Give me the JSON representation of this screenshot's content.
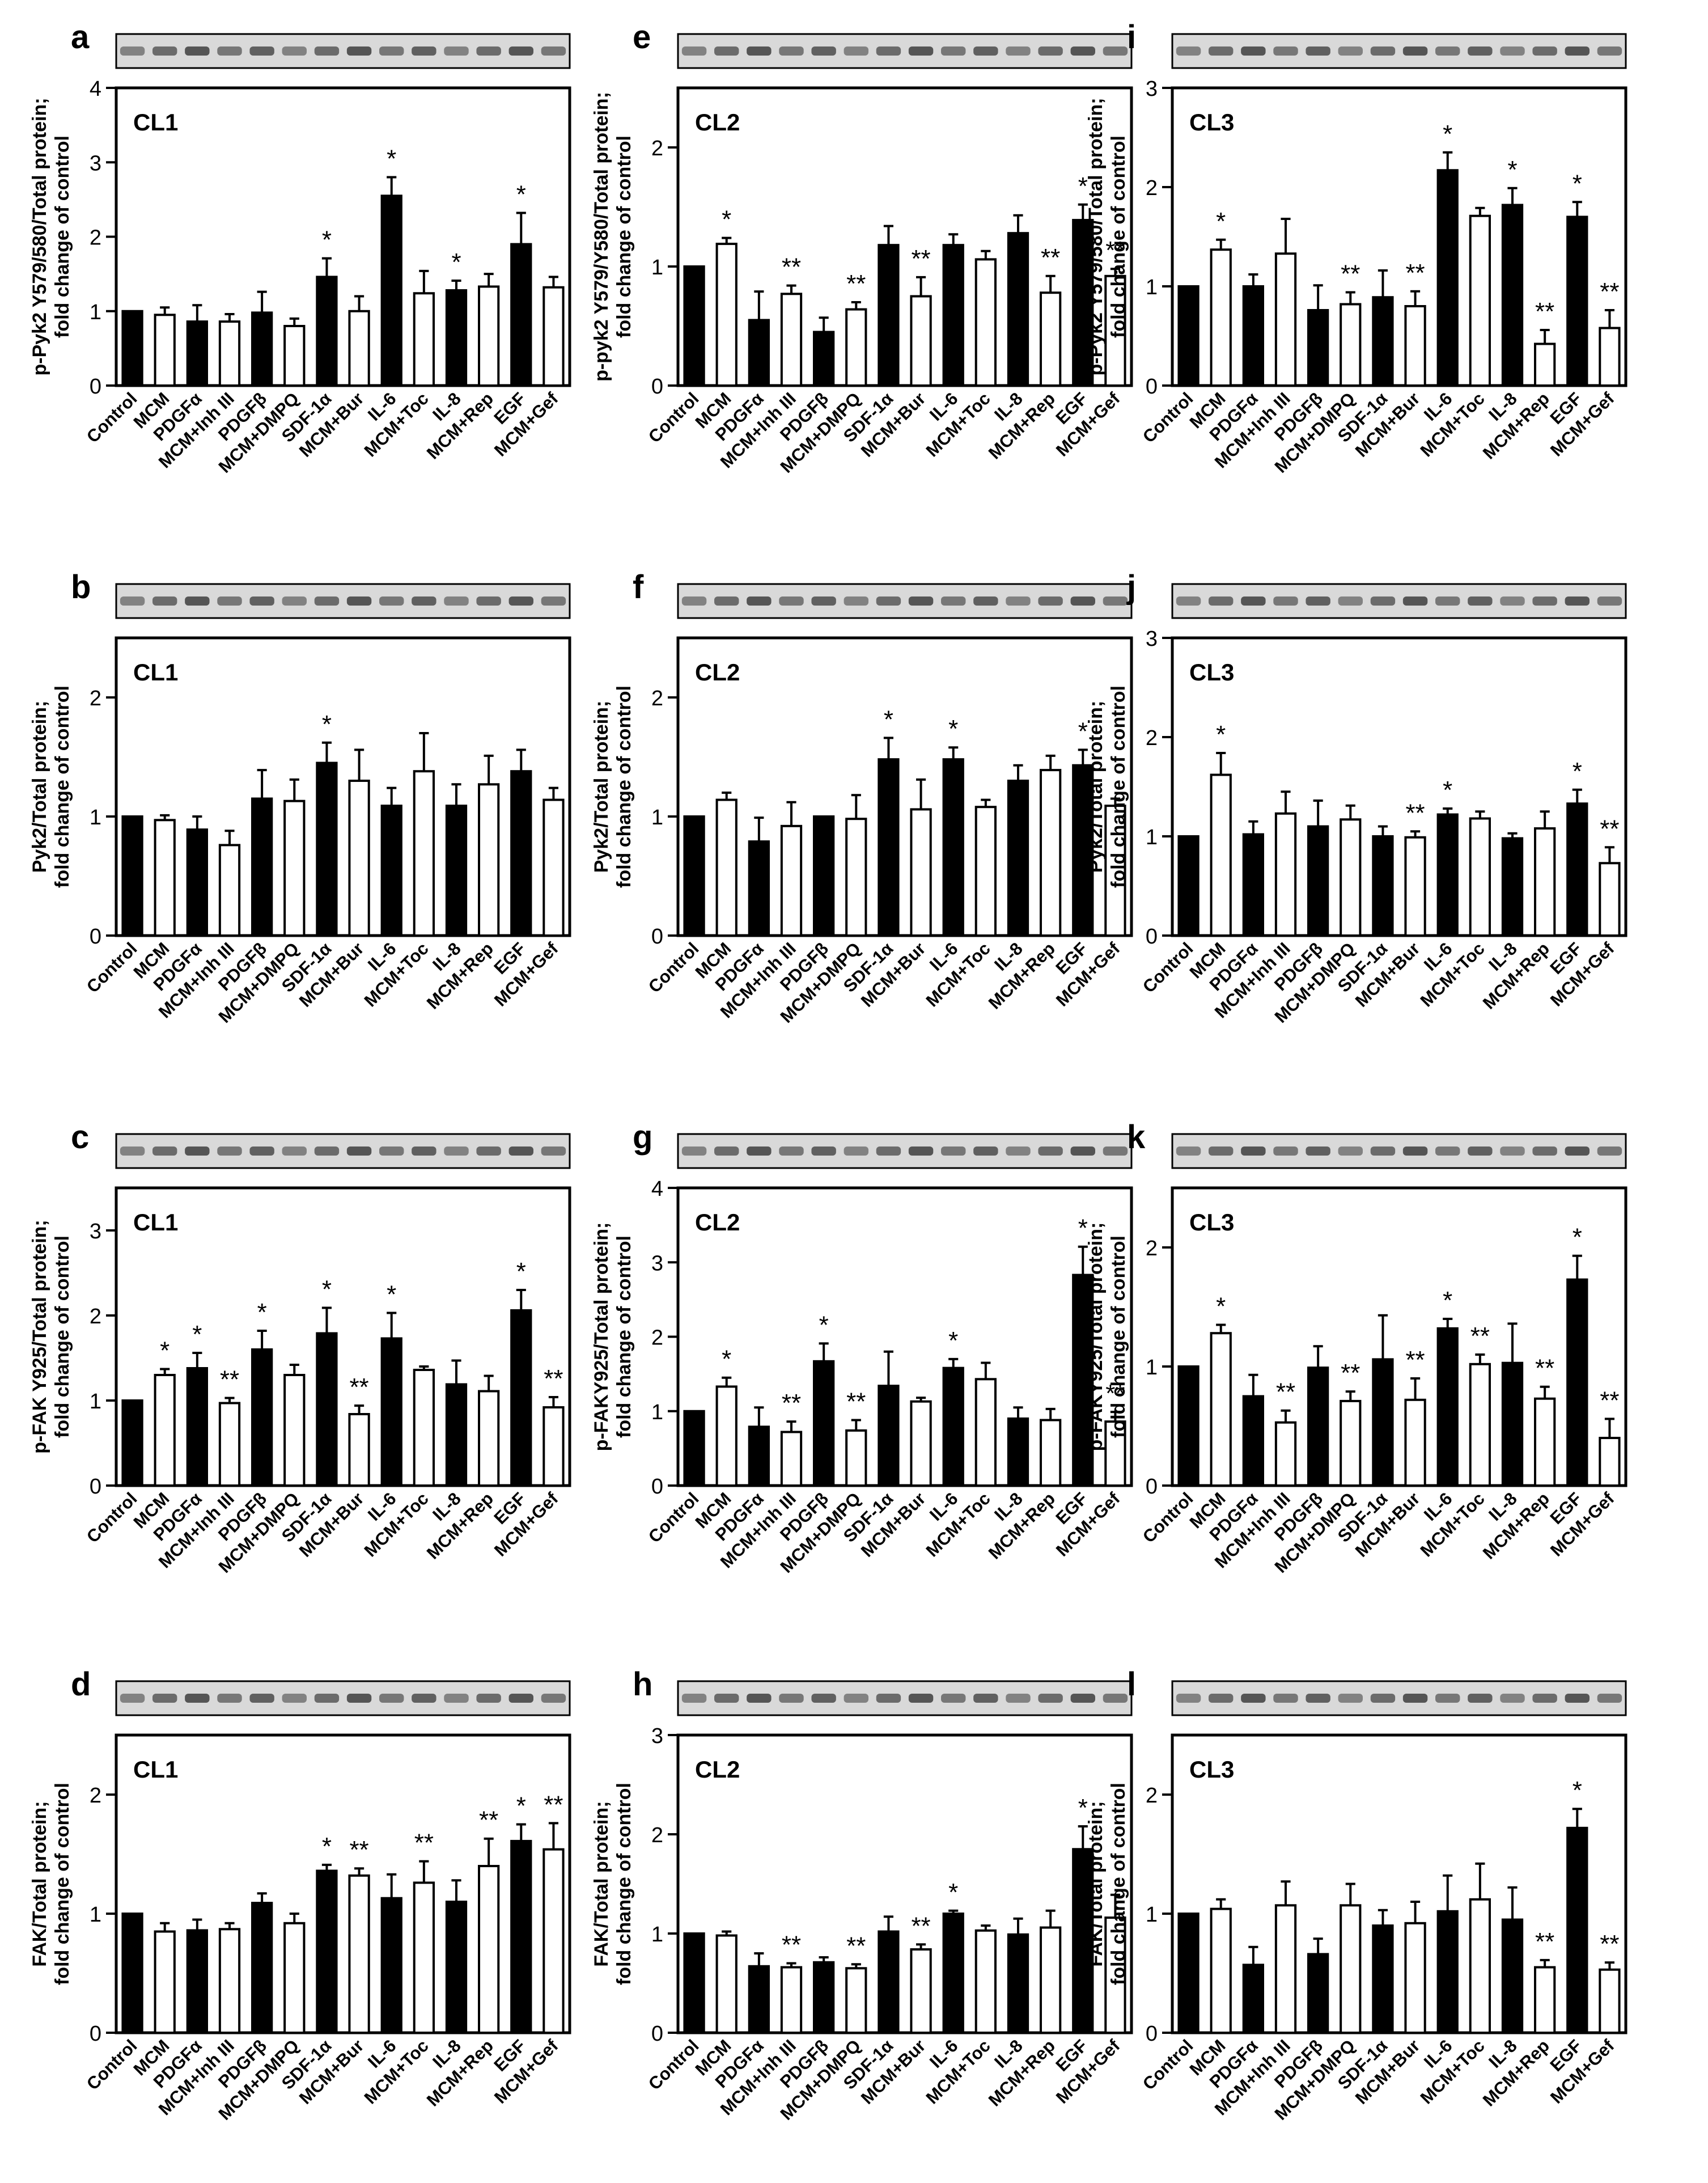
{
  "colors": {
    "filled": "#000000",
    "open": "#ffffff",
    "axis": "#000000",
    "blot_bg": "#d9d9d9",
    "blot_band": "#3a3a3a"
  },
  "chart_data": [
    {
      "id": "a",
      "type": "bar",
      "cell_line": "CL1",
      "ylabel": [
        "p-Pyk2 Y579/580/Total protein;",
        "fold change of control"
      ],
      "ylim": [
        0,
        4
      ],
      "ticks": [
        "0",
        "1",
        "2",
        "3",
        "4"
      ],
      "categories": [
        "Control",
        "MCM",
        "PDGFα",
        "MCM+Inh III",
        "PDGFβ",
        "MCM+DMPQ",
        "SDF-1α",
        "MCM+Bur",
        "IL-6",
        "MCM+Toc",
        "IL-8",
        "MCM+Rep",
        "EGF",
        "MCM+Gef"
      ],
      "values": [
        1,
        0.95,
        0.86,
        0.86,
        0.98,
        0.8,
        1.46,
        1.0,
        2.55,
        1.24,
        1.28,
        1.33,
        1.9,
        1.32
      ],
      "errors": [
        0,
        0.1,
        0.22,
        0.1,
        0.28,
        0.1,
        0.25,
        0.2,
        0.25,
        0.3,
        0.13,
        0.17,
        0.42,
        0.14
      ],
      "sig": [
        "",
        "",
        "",
        "",
        "",
        "",
        "*",
        "",
        "*",
        "",
        "*",
        "",
        "*",
        ""
      ]
    },
    {
      "id": "b",
      "type": "bar",
      "cell_line": "CL1",
      "ylabel": [
        "Pyk2/Total protein;",
        "fold change of control"
      ],
      "ylim": [
        0,
        2.5
      ],
      "ticks": [
        "0",
        "1",
        "2"
      ],
      "categories": [
        "Control",
        "MCM",
        "PDGFα",
        "MCM+Inh III",
        "PDGFβ",
        "MCM+DMPQ",
        "SDF-1α",
        "MCM+Bur",
        "IL-6",
        "MCM+Toc",
        "IL-8",
        "MCM+Rep",
        "EGF",
        "MCM+Gef"
      ],
      "values": [
        1,
        0.97,
        0.89,
        0.76,
        1.15,
        1.13,
        1.45,
        1.3,
        1.09,
        1.38,
        1.09,
        1.27,
        1.38,
        1.14
      ],
      "errors": [
        0,
        0.04,
        0.11,
        0.12,
        0.24,
        0.18,
        0.17,
        0.26,
        0.15,
        0.32,
        0.18,
        0.24,
        0.18,
        0.1
      ],
      "sig": [
        "",
        "",
        "",
        "",
        "",
        "",
        "*",
        "",
        "",
        "",
        "",
        "",
        "",
        ""
      ]
    },
    {
      "id": "c",
      "type": "bar",
      "cell_line": "CL1",
      "ylabel": [
        "p-FAK Y925/Total protein;",
        "fold change of control"
      ],
      "ylim": [
        0,
        3.5
      ],
      "ticks": [
        "0",
        "1",
        "2",
        "3"
      ],
      "categories": [
        "Control",
        "MCM",
        "PDGFα",
        "MCM+Inh III",
        "PDGFβ",
        "MCM+DMPQ",
        "SDF-1α",
        "MCM+Bur",
        "IL-6",
        "MCM+Toc",
        "IL-8",
        "MCM+Rep",
        "EGF",
        "MCM+Gef"
      ],
      "values": [
        1,
        1.3,
        1.38,
        0.97,
        1.6,
        1.3,
        1.79,
        0.84,
        1.73,
        1.36,
        1.19,
        1.11,
        2.06,
        0.92
      ],
      "errors": [
        0,
        0.07,
        0.18,
        0.06,
        0.22,
        0.12,
        0.3,
        0.1,
        0.3,
        0.04,
        0.28,
        0.18,
        0.24,
        0.12
      ],
      "sig": [
        "",
        "*",
        "*",
        "**",
        "*",
        "",
        "*",
        "**",
        "*",
        "",
        "",
        "",
        "*",
        "**"
      ]
    },
    {
      "id": "d",
      "type": "bar",
      "cell_line": "CL1",
      "ylabel": [
        "FAK/Total protein;",
        "fold change of control"
      ],
      "ylim": [
        0,
        2.5
      ],
      "ticks": [
        "0",
        "1",
        "2"
      ],
      "categories": [
        "Control",
        "MCM",
        "PDGFα",
        "MCM+Inh III",
        "PDGFβ",
        "MCM+DMPQ",
        "SDF-1α",
        "MCM+Bur",
        "IL-6",
        "MCM+Toc",
        "IL-8",
        "MCM+Rep",
        "EGF",
        "MCM+Gef"
      ],
      "values": [
        1,
        0.85,
        0.86,
        0.87,
        1.09,
        0.92,
        1.36,
        1.32,
        1.13,
        1.26,
        1.1,
        1.4,
        1.61,
        1.54
      ],
      "errors": [
        0,
        0.07,
        0.09,
        0.05,
        0.08,
        0.08,
        0.05,
        0.06,
        0.2,
        0.18,
        0.18,
        0.23,
        0.14,
        0.22
      ],
      "sig": [
        "",
        "",
        "",
        "",
        "",
        "",
        "*",
        "**",
        "",
        "**",
        "",
        "**",
        "*",
        "**"
      ]
    },
    {
      "id": "e",
      "type": "bar",
      "cell_line": "CL2",
      "ylabel": [
        "p-pyk2 Y579/Y580/Total protein;",
        "fold change of control"
      ],
      "ylim": [
        0,
        2.5
      ],
      "ticks": [
        "0",
        "1",
        "2"
      ],
      "categories": [
        "Control",
        "MCM",
        "PDGFα",
        "MCM+Inh III",
        "PDGFβ",
        "MCM+DMPQ",
        "SDF-1α",
        "MCM+Bur",
        "IL-6",
        "MCM+Toc",
        "IL-8",
        "MCM+Rep",
        "EGF",
        "MCM+Gef"
      ],
      "values": [
        1,
        1.19,
        0.55,
        0.77,
        0.45,
        0.64,
        1.18,
        0.75,
        1.18,
        1.06,
        1.28,
        0.78,
        1.39,
        0.92
      ],
      "errors": [
        0,
        0.05,
        0.24,
        0.07,
        0.12,
        0.06,
        0.16,
        0.16,
        0.09,
        0.07,
        0.15,
        0.14,
        0.13,
        0.06
      ],
      "sig": [
        "",
        "*",
        "",
        "**",
        "",
        "**",
        "",
        "**",
        "",
        "",
        "",
        "**",
        "*",
        "**"
      ]
    },
    {
      "id": "f",
      "type": "bar",
      "cell_line": "CL2",
      "ylabel": [
        "Pyk2/Total protein;",
        "fold change of control"
      ],
      "ylim": [
        0,
        2.5
      ],
      "ticks": [
        "0",
        "1",
        "2"
      ],
      "categories": [
        "Control",
        "MCM",
        "PDGFα",
        "MCM+Inh III",
        "PDGFβ",
        "MCM+DMPQ",
        "SDF-1α",
        "MCM+Bur",
        "IL-6",
        "MCM+Toc",
        "IL-8",
        "MCM+Rep",
        "EGF",
        "MCM+Gef"
      ],
      "values": [
        1,
        1.14,
        0.79,
        0.92,
        1.0,
        0.98,
        1.48,
        1.06,
        1.48,
        1.08,
        1.3,
        1.39,
        1.43,
        1.09
      ],
      "errors": [
        0,
        0.06,
        0.2,
        0.2,
        0,
        0.2,
        0.18,
        0.25,
        0.1,
        0.06,
        0.13,
        0.12,
        0.13,
        0.06
      ],
      "sig": [
        "",
        "",
        "",
        "",
        "",
        "",
        "*",
        "",
        "*",
        "",
        "",
        "",
        "*",
        ""
      ]
    },
    {
      "id": "g",
      "type": "bar",
      "cell_line": "CL2",
      "ylabel": [
        "p-FAKY925/Total protein;",
        "fold change of control"
      ],
      "ylim": [
        0,
        4
      ],
      "ticks": [
        "0",
        "1",
        "2",
        "3",
        "4"
      ],
      "categories": [
        "Control",
        "MCM",
        "PDGFα",
        "MCM+Inh III",
        "PDGFβ",
        "MCM+DMPQ",
        "SDF-1α",
        "MCM+Bur",
        "IL-6",
        "MCM+Toc",
        "IL-8",
        "MCM+Rep",
        "EGF",
        "MCM+Gef"
      ],
      "values": [
        1,
        1.33,
        0.79,
        0.72,
        1.67,
        0.74,
        1.34,
        1.13,
        1.58,
        1.43,
        0.9,
        0.88,
        2.83,
        0.86
      ],
      "errors": [
        0,
        0.12,
        0.26,
        0.14,
        0.24,
        0.14,
        0.46,
        0.05,
        0.12,
        0.22,
        0.15,
        0.15,
        0.38,
        0.13
      ],
      "sig": [
        "",
        "*",
        "",
        "**",
        "*",
        "**",
        "",
        "",
        "*",
        "",
        "",
        "",
        "*",
        "**"
      ]
    },
    {
      "id": "h",
      "type": "bar",
      "cell_line": "CL2",
      "ylabel": [
        "FAK/Total protein;",
        "fold change of control"
      ],
      "ylim": [
        0,
        3
      ],
      "ticks": [
        "0",
        "1",
        "2",
        "3"
      ],
      "categories": [
        "Control",
        "MCM",
        "PDGFα",
        "MCM+Inh III",
        "PDGFβ",
        "MCM+DMPQ",
        "SDF-1α",
        "MCM+Bur",
        "IL-6",
        "MCM+Toc",
        "IL-8",
        "MCM+Rep",
        "EGF",
        "MCM+Gef"
      ],
      "values": [
        1,
        0.98,
        0.67,
        0.66,
        0.71,
        0.65,
        1.02,
        0.84,
        1.2,
        1.03,
        0.99,
        1.06,
        1.85,
        1.16
      ],
      "errors": [
        0,
        0.04,
        0.13,
        0.04,
        0.05,
        0.04,
        0.15,
        0.05,
        0.03,
        0.05,
        0.16,
        0.17,
        0.23,
        0.23
      ],
      "sig": [
        "",
        "",
        "",
        "**",
        "",
        "**",
        "",
        "**",
        "*",
        "",
        "",
        "",
        "*",
        ""
      ]
    },
    {
      "id": "i",
      "type": "bar",
      "cell_line": "CL3",
      "ylabel": [
        "p-Pyk2 Y579/580/Total protein;",
        "fold change of control"
      ],
      "ylim": [
        0,
        3
      ],
      "ticks": [
        "0",
        "1",
        "2",
        "3"
      ],
      "categories": [
        "Control",
        "MCM",
        "PDGFα",
        "MCM+Inh III",
        "PDGFβ",
        "MCM+DMPQ",
        "SDF-1α",
        "MCM+Bur",
        "IL-6",
        "MCM+Toc",
        "IL-8",
        "MCM+Rep",
        "EGF",
        "MCM+Gef"
      ],
      "values": [
        1,
        1.37,
        1.0,
        1.33,
        0.76,
        0.82,
        0.89,
        0.8,
        2.17,
        1.71,
        1.82,
        0.42,
        1.7,
        0.58
      ],
      "errors": [
        0,
        0.1,
        0.12,
        0.35,
        0.25,
        0.12,
        0.27,
        0.15,
        0.18,
        0.08,
        0.17,
        0.14,
        0.15,
        0.18
      ],
      "sig": [
        "",
        "*",
        "",
        "",
        "",
        "**",
        "",
        "**",
        "*",
        "",
        "*",
        "**",
        "*",
        "**"
      ]
    },
    {
      "id": "j",
      "type": "bar",
      "cell_line": "CL3",
      "ylabel": [
        "Pyk2/Total protein;",
        "fold change of control"
      ],
      "ylim": [
        0,
        3
      ],
      "ticks": [
        "0",
        "1",
        "2",
        "3"
      ],
      "categories": [
        "Control",
        "MCM",
        "PDGFα",
        "MCM+Inh III",
        "PDGFβ",
        "MCM+DMPQ",
        "SDF-1α",
        "MCM+Bur",
        "IL-6",
        "MCM+Toc",
        "IL-8",
        "MCM+Rep",
        "EGF",
        "MCM+Gef"
      ],
      "values": [
        1,
        1.62,
        1.02,
        1.23,
        1.1,
        1.17,
        1.0,
        0.99,
        1.22,
        1.18,
        0.98,
        1.08,
        1.33,
        0.73
      ],
      "errors": [
        0,
        0.22,
        0.13,
        0.22,
        0.26,
        0.14,
        0.1,
        0.06,
        0.06,
        0.07,
        0.05,
        0.17,
        0.14,
        0.16
      ],
      "sig": [
        "",
        "*",
        "",
        "",
        "",
        "",
        "",
        "**",
        "*",
        "",
        "",
        "",
        "*",
        "**"
      ]
    },
    {
      "id": "k",
      "type": "bar",
      "cell_line": "CL3",
      "ylabel": [
        "p-FAKY925/Total protein;",
        "fold change of control"
      ],
      "ylim": [
        0,
        2.5
      ],
      "ticks": [
        "0",
        "1",
        "2"
      ],
      "categories": [
        "Control",
        "MCM",
        "PDGFα",
        "MCM+Inh III",
        "PDGFβ",
        "MCM+DMPQ",
        "SDF-1α",
        "MCM+Bur",
        "IL-6",
        "MCM+Toc",
        "IL-8",
        "MCM+Rep",
        "EGF",
        "MCM+Gef"
      ],
      "values": [
        1,
        1.28,
        0.75,
        0.53,
        0.99,
        0.71,
        1.06,
        0.72,
        1.32,
        1.02,
        1.03,
        0.73,
        1.73,
        0.4
      ],
      "errors": [
        0,
        0.07,
        0.18,
        0.1,
        0.18,
        0.08,
        0.37,
        0.18,
        0.08,
        0.08,
        0.33,
        0.1,
        0.2,
        0.16
      ],
      "sig": [
        "",
        "*",
        "",
        "**",
        "",
        "**",
        "",
        "**",
        "*",
        "**",
        "",
        "**",
        "*",
        "**"
      ]
    },
    {
      "id": "l",
      "type": "bar",
      "cell_line": "CL3",
      "ylabel": [
        "FAK/Total protein;",
        "fold change of control"
      ],
      "ylim": [
        0,
        2.5
      ],
      "ticks": [
        "0",
        "1",
        "2"
      ],
      "categories": [
        "Control",
        "MCM",
        "PDGFα",
        "MCM+Inh III",
        "PDGFβ",
        "MCM+DMPQ",
        "SDF-1α",
        "MCM+Bur",
        "IL-6",
        "MCM+Toc",
        "IL-8",
        "MCM+Rep",
        "EGF",
        "MCM+Gef"
      ],
      "values": [
        1,
        1.04,
        0.57,
        1.07,
        0.66,
        1.07,
        0.9,
        0.92,
        1.02,
        1.12,
        0.95,
        0.55,
        1.72,
        0.53
      ],
      "errors": [
        0,
        0.08,
        0.15,
        0.2,
        0.13,
        0.18,
        0.13,
        0.18,
        0.3,
        0.3,
        0.27,
        0.06,
        0.16,
        0.06
      ],
      "sig": [
        "",
        "",
        "",
        "",
        "",
        "",
        "",
        "",
        "",
        "",
        "",
        "**",
        "*",
        "**"
      ]
    }
  ]
}
